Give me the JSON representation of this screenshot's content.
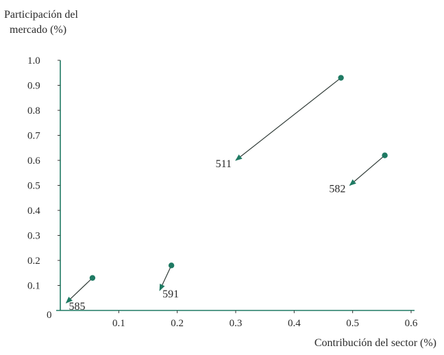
{
  "chart_data": {
    "type": "scatter",
    "ylabel_lines": [
      "Participación del",
      "mercado (%)"
    ],
    "xlabel": "Contribución del sector (%)",
    "origin_label": "0",
    "xlim": [
      0,
      0.6
    ],
    "ylim": [
      0,
      1.0
    ],
    "x_ticks": [
      {
        "value": 0.1,
        "label": "0.1"
      },
      {
        "value": 0.2,
        "label": "0.2"
      },
      {
        "value": 0.3,
        "label": "0.3"
      },
      {
        "value": 0.4,
        "label": "0.4"
      },
      {
        "value": 0.5,
        "label": "0.5"
      },
      {
        "value": 0.6,
        "label": "0.6"
      }
    ],
    "y_ticks": [
      {
        "value": 0.1,
        "label": "0.1"
      },
      {
        "value": 0.2,
        "label": "0.2"
      },
      {
        "value": 0.3,
        "label": "0.3"
      },
      {
        "value": 0.4,
        "label": "0.4"
      },
      {
        "value": 0.5,
        "label": "0.5"
      },
      {
        "value": 0.6,
        "label": "0.6"
      },
      {
        "value": 0.7,
        "label": "0.7"
      },
      {
        "value": 0.8,
        "label": "0.8"
      },
      {
        "value": 0.9,
        "label": "0.9"
      },
      {
        "value": 1.0,
        "label": "1.0"
      }
    ],
    "points": [
      {
        "label": "511",
        "start": [
          0.48,
          0.93
        ],
        "end": [
          0.3,
          0.6
        ],
        "label_side": "left"
      },
      {
        "label": "582",
        "start": [
          0.555,
          0.62
        ],
        "end": [
          0.495,
          0.5
        ],
        "label_side": "left"
      },
      {
        "label": "591",
        "start": [
          0.19,
          0.18
        ],
        "end": [
          0.17,
          0.08
        ],
        "label_side": "right"
      },
      {
        "label": "585",
        "start": [
          0.055,
          0.13
        ],
        "end": [
          0.01,
          0.03
        ],
        "label_side": "right"
      }
    ],
    "colors": {
      "point": "#1f7a63",
      "arrow": "#2f3a36",
      "axis_y": "#1f7a63",
      "axis_x": "#1f7a63"
    }
  }
}
